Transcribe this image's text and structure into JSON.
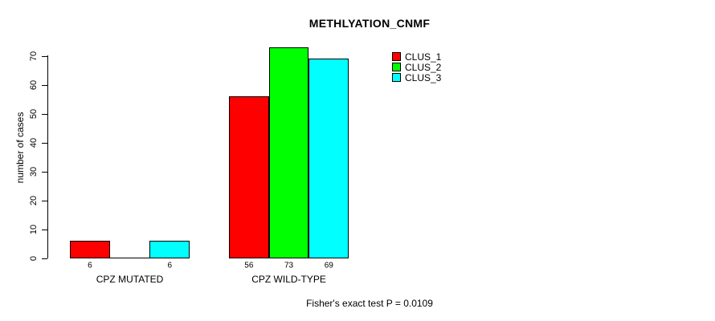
{
  "chart_data": {
    "type": "bar",
    "title": "METHLYATION_CNMF",
    "ylabel": "number of cases",
    "xlabel": "",
    "categories": [
      "CPZ MUTATED",
      "CPZ WILD-TYPE"
    ],
    "series": [
      {
        "name": "CLUS_1",
        "color": "#ff0000",
        "values": [
          6,
          56
        ]
      },
      {
        "name": "CLUS_2",
        "color": "#00ff00",
        "values": [
          0,
          73
        ]
      },
      {
        "name": "CLUS_3",
        "color": "#00ffff",
        "values": [
          6,
          69
        ]
      }
    ],
    "bar_value_labels": [
      [
        "6",
        "",
        "6"
      ],
      [
        "56",
        "73",
        "69"
      ]
    ],
    "y_ticks": [
      0,
      10,
      20,
      30,
      40,
      50,
      60,
      70
    ],
    "ylim": [
      0,
      70
    ],
    "grid": false,
    "legend_position": "top-right",
    "annotation": "Fisher's exact test P = 0.0109",
    "colors": {
      "background": "#ffffff",
      "axis": "#000000",
      "text": "#000000"
    }
  }
}
